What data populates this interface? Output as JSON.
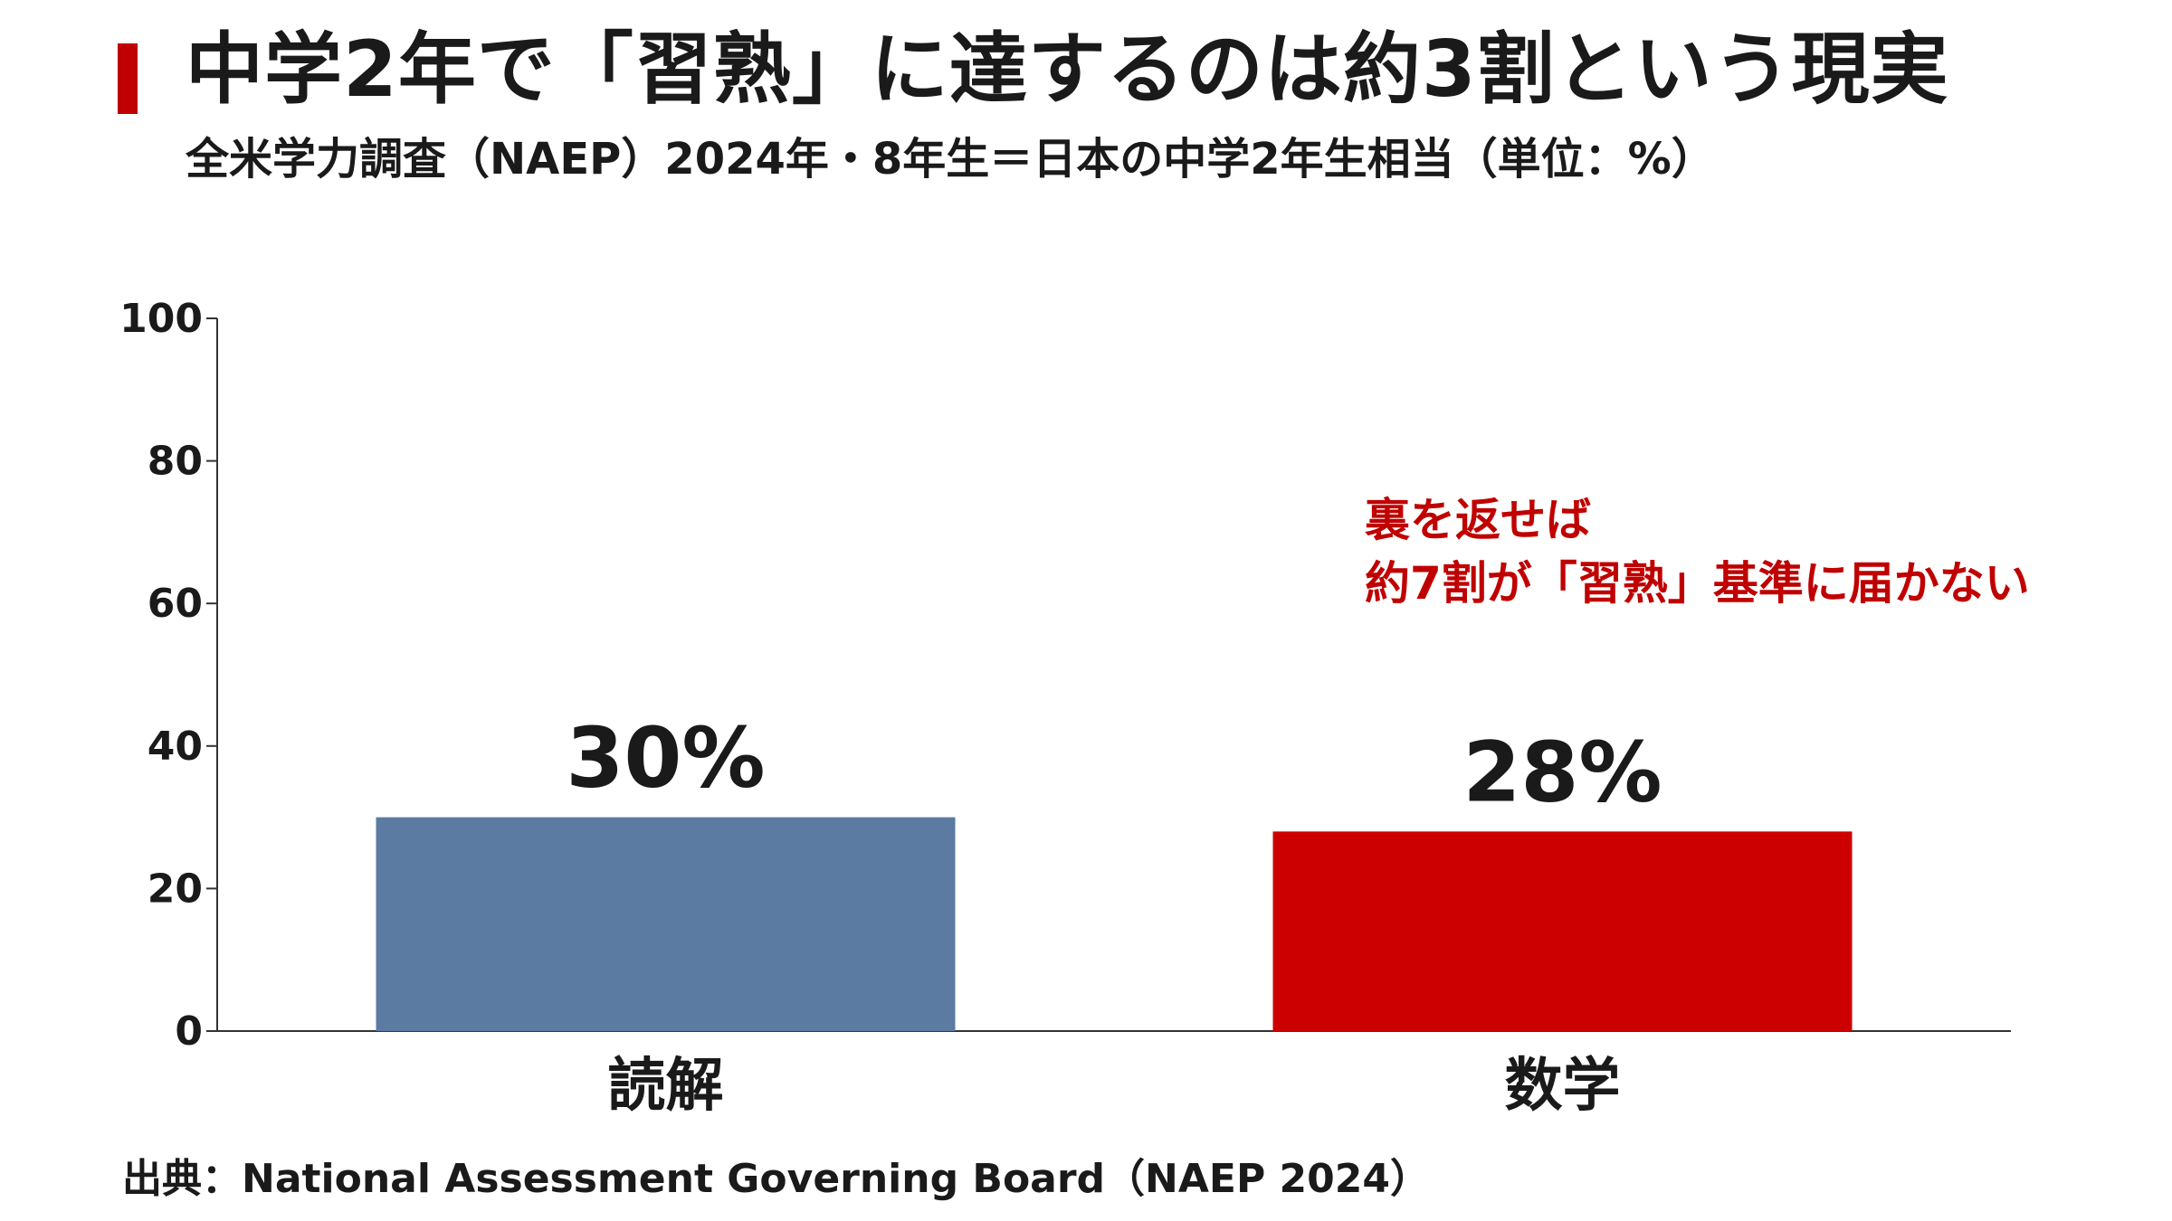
{
  "header": {
    "title": "中学2年で「習熟」に達するのは約3割という現実",
    "subtitle": "全米学力調査（NAEP）2024年・8年生＝日本の中学2年生相当（単位：%）"
  },
  "source": "出典：National Assessment Governing Board（NAEP 2024）",
  "chart_data": {
    "type": "bar",
    "categories": [
      "読解",
      "数学"
    ],
    "values": [
      30,
      28
    ],
    "value_labels": [
      "30%",
      "28%"
    ],
    "colors": [
      "#5b7ba3",
      "#cc0000"
    ],
    "yticks": [
      "0",
      "20",
      "40",
      "60",
      "80",
      "100"
    ],
    "ylim": [
      0,
      100
    ],
    "grid": false,
    "annotation": {
      "lines": [
        "裏を返せば",
        "約7割が「習熟」基準に届かない"
      ],
      "color": "#c00000"
    }
  }
}
